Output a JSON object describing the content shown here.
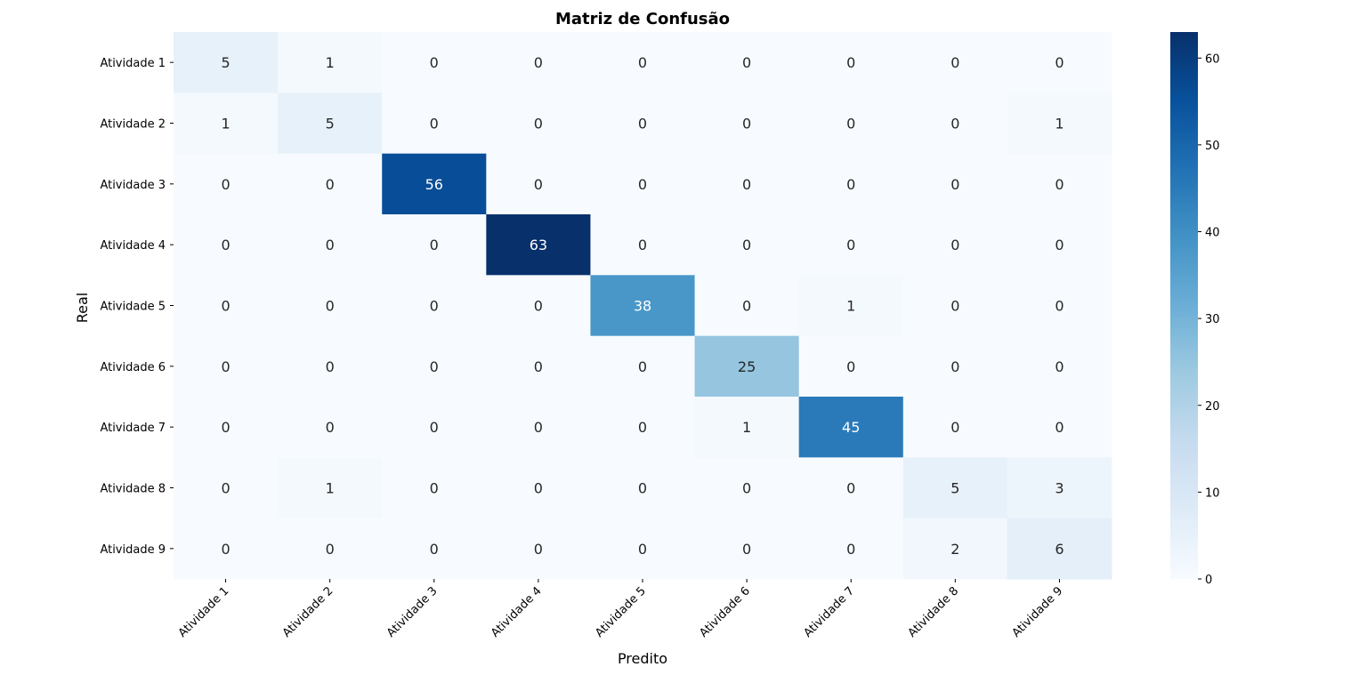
{
  "chart_data": {
    "type": "heatmap",
    "title": "Matriz de Confusão",
    "xlabel": "Predito",
    "ylabel": "Real",
    "x_categories": [
      "Atividade 1",
      "Atividade 2",
      "Atividade 3",
      "Atividade 4",
      "Atividade 5",
      "Atividade 6",
      "Atividade 7",
      "Atividade 8",
      "Atividade 9"
    ],
    "y_categories": [
      "Atividade 1",
      "Atividade 2",
      "Atividade 3",
      "Atividade 4",
      "Atividade 5",
      "Atividade 6",
      "Atividade 7",
      "Atividade 8",
      "Atividade 9"
    ],
    "values": [
      [
        5,
        1,
        0,
        0,
        0,
        0,
        0,
        0,
        0
      ],
      [
        1,
        5,
        0,
        0,
        0,
        0,
        0,
        0,
        1
      ],
      [
        0,
        0,
        56,
        0,
        0,
        0,
        0,
        0,
        0
      ],
      [
        0,
        0,
        0,
        63,
        0,
        0,
        0,
        0,
        0
      ],
      [
        0,
        0,
        0,
        0,
        38,
        0,
        1,
        0,
        0
      ],
      [
        0,
        0,
        0,
        0,
        0,
        25,
        0,
        0,
        0
      ],
      [
        0,
        0,
        0,
        0,
        0,
        1,
        45,
        0,
        0
      ],
      [
        0,
        1,
        0,
        0,
        0,
        0,
        0,
        5,
        3
      ],
      [
        0,
        0,
        0,
        0,
        0,
        0,
        0,
        2,
        6
      ]
    ],
    "colormap": "Blues",
    "colorbar": {
      "range": [
        0,
        63
      ],
      "ticks": [
        0,
        10,
        20,
        30,
        40,
        50,
        60
      ]
    }
  }
}
